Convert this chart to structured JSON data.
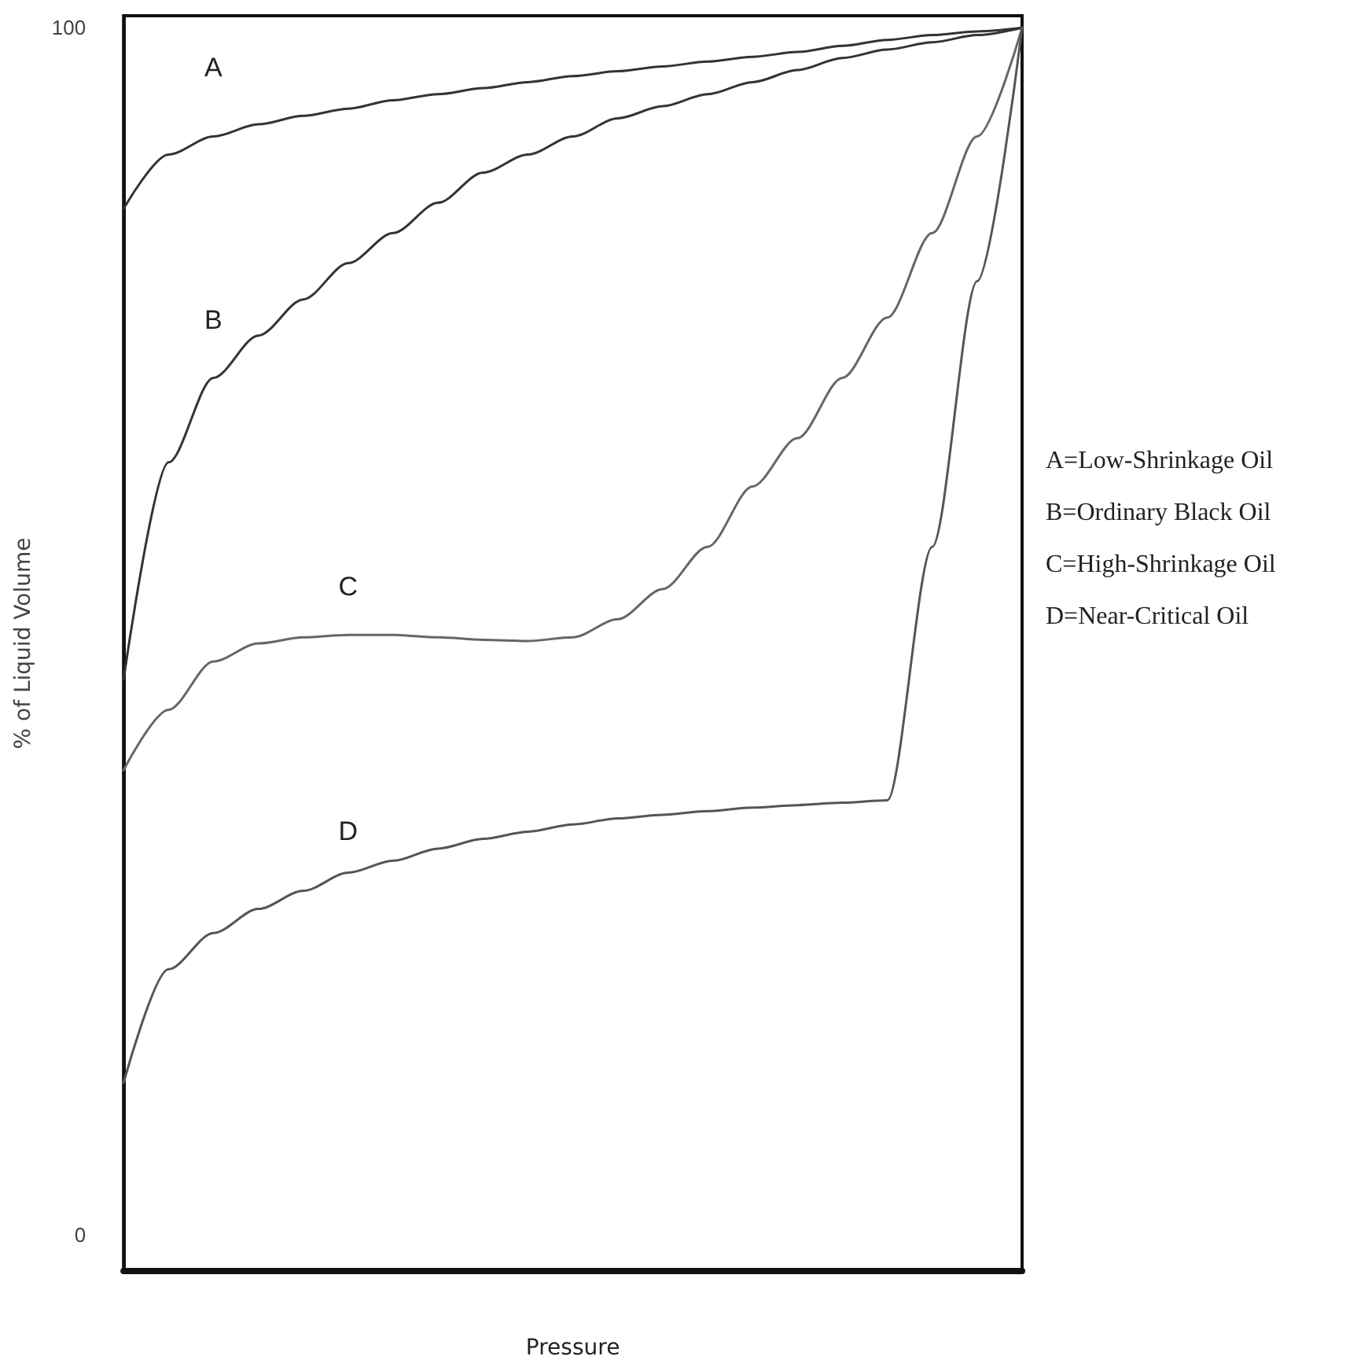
{
  "chart_data": {
    "type": "line",
    "xlabel": "Pressure",
    "ylabel": "% of Liquid Volume",
    "categories": [
      null,
      null,
      null,
      null,
      null,
      null,
      null,
      null,
      null,
      null,
      null,
      null,
      null,
      null,
      null,
      null,
      null,
      null,
      null,
      null,
      null
    ],
    "series": [
      {
        "name": "A",
        "color": "#333333",
        "values": [
          85,
          89.5,
          91,
          92,
          92.7,
          93.3,
          94,
          94.5,
          95,
          95.5,
          96,
          96.4,
          96.8,
          97.2,
          97.6,
          98,
          98.5,
          99,
          99.4,
          99.7,
          100
        ]
      },
      {
        "name": "B",
        "color": "#333333",
        "values": [
          46,
          64,
          71,
          74.5,
          77.5,
          80.5,
          83,
          85.5,
          88,
          89.5,
          91,
          92.5,
          93.5,
          94.5,
          95.5,
          96.5,
          97.5,
          98.2,
          98.8,
          99.4,
          100
        ]
      },
      {
        "name": "C",
        "color": "#666666",
        "values": [
          38.5,
          43.5,
          47.5,
          49,
          49.5,
          49.7,
          49.7,
          49.5,
          49.3,
          49.2,
          49.5,
          51,
          53.5,
          57,
          62,
          66,
          71,
          76,
          83,
          91,
          100
        ]
      },
      {
        "name": "D",
        "color": "#555555",
        "values": [
          12.6,
          22,
          25,
          27,
          28.5,
          30,
          31,
          32,
          32.8,
          33.4,
          34,
          34.5,
          34.8,
          35.1,
          35.4,
          35.6,
          35.8,
          36,
          57,
          79,
          100
        ]
      }
    ],
    "ylim": [
      -3,
      101
    ],
    "yticks": [
      0,
      100
    ],
    "tick_labels": "y",
    "grid": false,
    "legend": false,
    "marker": "none",
    "line_style": "solid",
    "annotations": [
      "A=Low-Shrinkage Oil",
      "B=Ordinary Black Oil",
      "C=High-Shrinkage Oil",
      "D=Near-Critical Oil"
    ]
  }
}
